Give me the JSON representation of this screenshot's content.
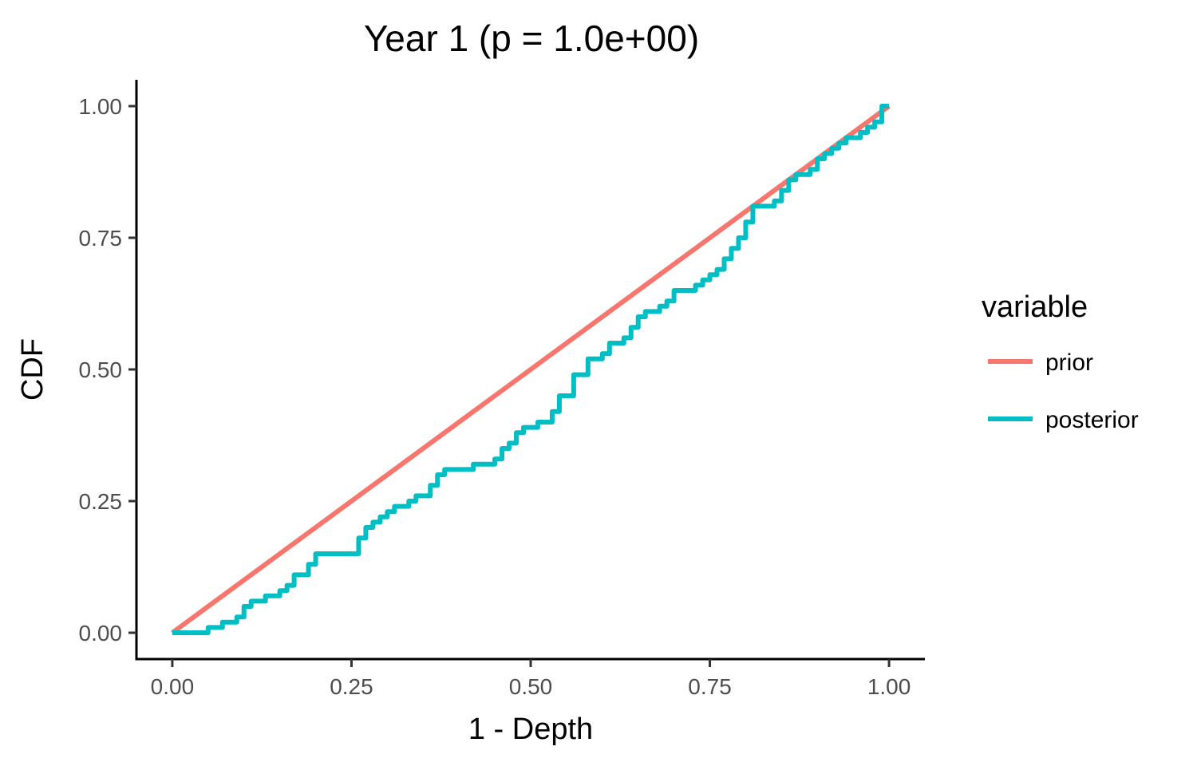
{
  "chart_data": {
    "type": "line",
    "title": "Year 1 (p = 1.0e+00)",
    "xlabel": "1 - Depth",
    "ylabel": "CDF",
    "xlim": [
      -0.05,
      1.05
    ],
    "ylim": [
      -0.05,
      1.05
    ],
    "xticks": [
      0,
      0.25,
      0.5,
      0.75,
      1
    ],
    "xtick_labels": [
      "0.00",
      "0.25",
      "0.50",
      "0.75",
      "1.00"
    ],
    "yticks": [
      0,
      0.25,
      0.5,
      0.75,
      1
    ],
    "ytick_labels": [
      "0.00",
      "0.25",
      "0.50",
      "0.75",
      "1.00"
    ],
    "grid": false,
    "legend": {
      "title": "variable",
      "position": "right"
    },
    "series": [
      {
        "name": "prior",
        "color": "#F8766D",
        "step": false,
        "points": [
          [
            0,
            0
          ],
          [
            1,
            1
          ]
        ]
      },
      {
        "name": "posterior",
        "color": "#00BFC4",
        "step": true,
        "points": [
          [
            0,
            0
          ],
          [
            0.05,
            0.01
          ],
          [
            0.07,
            0.02
          ],
          [
            0.09,
            0.03
          ],
          [
            0.1,
            0.05
          ],
          [
            0.11,
            0.06
          ],
          [
            0.13,
            0.07
          ],
          [
            0.15,
            0.08
          ],
          [
            0.16,
            0.09
          ],
          [
            0.17,
            0.11
          ],
          [
            0.19,
            0.13
          ],
          [
            0.2,
            0.15
          ],
          [
            0.26,
            0.18
          ],
          [
            0.27,
            0.2
          ],
          [
            0.28,
            0.21
          ],
          [
            0.29,
            0.22
          ],
          [
            0.3,
            0.23
          ],
          [
            0.31,
            0.24
          ],
          [
            0.33,
            0.25
          ],
          [
            0.34,
            0.26
          ],
          [
            0.36,
            0.28
          ],
          [
            0.37,
            0.3
          ],
          [
            0.38,
            0.31
          ],
          [
            0.42,
            0.32
          ],
          [
            0.45,
            0.33
          ],
          [
            0.46,
            0.35
          ],
          [
            0.47,
            0.36
          ],
          [
            0.48,
            0.38
          ],
          [
            0.49,
            0.39
          ],
          [
            0.51,
            0.4
          ],
          [
            0.53,
            0.42
          ],
          [
            0.54,
            0.45
          ],
          [
            0.56,
            0.49
          ],
          [
            0.58,
            0.52
          ],
          [
            0.6,
            0.53
          ],
          [
            0.61,
            0.55
          ],
          [
            0.63,
            0.56
          ],
          [
            0.64,
            0.58
          ],
          [
            0.65,
            0.6
          ],
          [
            0.66,
            0.61
          ],
          [
            0.68,
            0.62
          ],
          [
            0.69,
            0.63
          ],
          [
            0.7,
            0.65
          ],
          [
            0.73,
            0.66
          ],
          [
            0.74,
            0.67
          ],
          [
            0.75,
            0.68
          ],
          [
            0.76,
            0.69
          ],
          [
            0.77,
            0.71
          ],
          [
            0.78,
            0.73
          ],
          [
            0.79,
            0.75
          ],
          [
            0.8,
            0.78
          ],
          [
            0.81,
            0.81
          ],
          [
            0.84,
            0.82
          ],
          [
            0.85,
            0.84
          ],
          [
            0.86,
            0.86
          ],
          [
            0.87,
            0.87
          ],
          [
            0.89,
            0.88
          ],
          [
            0.9,
            0.9
          ],
          [
            0.91,
            0.91
          ],
          [
            0.92,
            0.92
          ],
          [
            0.93,
            0.93
          ],
          [
            0.94,
            0.94
          ],
          [
            0.96,
            0.95
          ],
          [
            0.97,
            0.96
          ],
          [
            0.98,
            0.97
          ],
          [
            0.99,
            1.0
          ],
          [
            1.0,
            1.0
          ]
        ]
      }
    ]
  }
}
